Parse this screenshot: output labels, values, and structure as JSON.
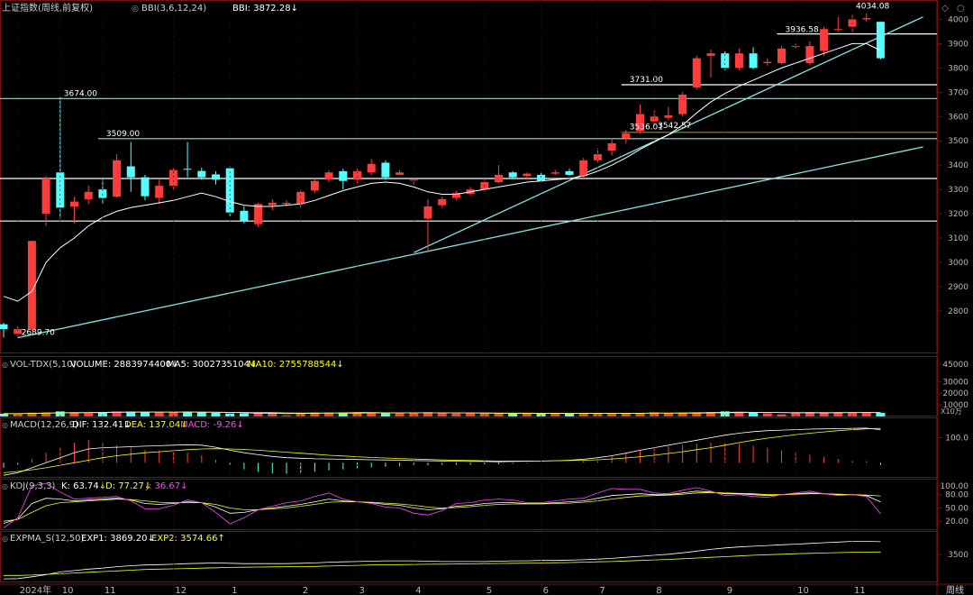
{
  "main_header": {
    "index": "上证指数(周线,前复权)",
    "bbi_params": "BBI(3,6,12,24)",
    "bbi_value": "BBI: 3872.28↓"
  },
  "vol_header": {
    "name": "VOL-TDX(5,10)",
    "volume": "VOLUME: 2883974400↓",
    "ma5": "MA5: 3002735104↓",
    "ma10": "MA10: 2755788544↓"
  },
  "macd_header": {
    "name": "MACD(12,26,9)",
    "dif": "DIF: 132.41↓",
    "dea": "DEA: 137.04↓",
    "macd": "MACD: -9.26↓"
  },
  "kdj_header": {
    "name": "KDJ(9,3,3)",
    "k": "K: 63.74↓",
    "d": "D: 77.27↓",
    "j": "J: 36.67↓"
  },
  "expma_header": {
    "name": "EXPMA_S(12,50)",
    "exp1": "EXP1: 3869.20↓",
    "exp2": "EXP2: 3574.66↑"
  },
  "vol_unit": "X10万",
  "period_label": "周线",
  "colors": {
    "up": "#ff3b3b",
    "down": "#54ffff",
    "bbi": "#ffffff",
    "trend": "#7fe8e8",
    "grid": "#7a1010",
    "axis": "#b8b8b8",
    "dea": "#ffff00",
    "macd_text": "#ff44ff"
  },
  "chart_data": {
    "type": "candlestick",
    "price_axis": {
      "ylim": [
        2640,
        4050
      ],
      "ticks": [
        2800,
        2900,
        3000,
        3100,
        3200,
        3300,
        3400,
        3500,
        3600,
        3700,
        3800,
        3900,
        4000
      ]
    },
    "x_labels": [
      {
        "i": 1,
        "label": "2024年"
      },
      {
        "i": 4,
        "label": "10"
      },
      {
        "i": 7,
        "label": "11"
      },
      {
        "i": 12,
        "label": "12"
      },
      {
        "i": 16,
        "label": "1"
      },
      {
        "i": 21,
        "label": "2"
      },
      {
        "i": 25,
        "label": "3"
      },
      {
        "i": 29,
        "label": "4"
      },
      {
        "i": 34,
        "label": "5"
      },
      {
        "i": 38,
        "label": "6"
      },
      {
        "i": 42,
        "label": "7"
      },
      {
        "i": 46,
        "label": "8"
      },
      {
        "i": 51,
        "label": "9"
      },
      {
        "i": 56,
        "label": "10"
      },
      {
        "i": 60,
        "label": "11"
      }
    ],
    "candles": [
      [
        2745,
        2725,
        2752,
        2690
      ],
      [
        2705,
        2725,
        2738,
        2692
      ],
      [
        2725,
        3088,
        3090,
        2720
      ],
      [
        3200,
        3345,
        3355,
        3150
      ],
      [
        3370,
        3225,
        3680,
        3180
      ],
      [
        3230,
        3250,
        3270,
        3160
      ],
      [
        3260,
        3290,
        3315,
        3240
      ],
      [
        3300,
        3265,
        3340,
        3240
      ],
      [
        3270,
        3420,
        3445,
        3265
      ],
      [
        3395,
        3350,
        3495,
        3290
      ],
      [
        3350,
        3272,
        3360,
        3255
      ],
      [
        3265,
        3315,
        3340,
        3240
      ],
      [
        3315,
        3380,
        3390,
        3300
      ],
      [
        3385,
        3382,
        3495,
        3350
      ],
      [
        3376,
        3350,
        3390,
        3340
      ],
      [
        3362,
        3340,
        3375,
        3320
      ],
      [
        3387,
        3205,
        3395,
        3190
      ],
      [
        3212,
        3170,
        3230,
        3160
      ],
      [
        3157,
        3240,
        3245,
        3145
      ],
      [
        3235,
        3245,
        3260,
        3215
      ],
      [
        3240,
        3245,
        3255,
        3230
      ],
      [
        3240,
        3290,
        3300,
        3225
      ],
      [
        3295,
        3335,
        3345,
        3285
      ],
      [
        3340,
        3370,
        3380,
        3330
      ],
      [
        3375,
        3335,
        3385,
        3300
      ],
      [
        3340,
        3375,
        3385,
        3325
      ],
      [
        3370,
        3405,
        3425,
        3360
      ],
      [
        3410,
        3350,
        3420,
        3340
      ],
      [
        3360,
        3370,
        3380,
        3360
      ],
      [
        3340,
        3340,
        3345,
        3320
      ],
      [
        3180,
        3230,
        3260,
        3040
      ],
      [
        3235,
        3260,
        3270,
        3225
      ],
      [
        3265,
        3285,
        3295,
        3255
      ],
      [
        3282,
        3300,
        3310,
        3275
      ],
      [
        3300,
        3330,
        3345,
        3290
      ],
      [
        3330,
        3360,
        3400,
        3325
      ],
      [
        3370,
        3350,
        3375,
        3345
      ],
      [
        3355,
        3365,
        3370,
        3345
      ],
      [
        3360,
        3335,
        3370,
        3330
      ],
      [
        3365,
        3370,
        3380,
        3360
      ],
      [
        3375,
        3360,
        3385,
        3355
      ],
      [
        3355,
        3420,
        3430,
        3350
      ],
      [
        3420,
        3445,
        3470,
        3410
      ],
      [
        3460,
        3490,
        3510,
        3440
      ],
      [
        3510,
        3530,
        3545,
        3490
      ],
      [
        3540,
        3610,
        3650,
        3530
      ],
      [
        3580,
        3600,
        3625,
        3560
      ],
      [
        3595,
        3605,
        3640,
        3585
      ],
      [
        3610,
        3690,
        3700,
        3600
      ],
      [
        3720,
        3840,
        3850,
        3710
      ],
      [
        3850,
        3860,
        3875,
        3760
      ],
      [
        3860,
        3800,
        3870,
        3790
      ],
      [
        3800,
        3860,
        3880,
        3790
      ],
      [
        3860,
        3800,
        3885,
        3795
      ],
      [
        3820,
        3825,
        3840,
        3810
      ],
      [
        3820,
        3880,
        3890,
        3815
      ],
      [
        3890,
        3890,
        3900,
        3880
      ],
      [
        3820,
        3890,
        3910,
        3810
      ],
      [
        3870,
        3960,
        3970,
        3850
      ],
      [
        3960,
        3960,
        4010,
        3950
      ],
      [
        3970,
        4000,
        4020,
        3945
      ],
      [
        4000,
        4005,
        4025,
        3990
      ],
      [
        3990,
        3840,
        3990,
        3835
      ]
    ],
    "bbi": [
      2860,
      2840,
      2880,
      3000,
      3060,
      3100,
      3150,
      3185,
      3210,
      3225,
      3235,
      3245,
      3255,
      3270,
      3285,
      3270,
      3250,
      3235,
      3230,
      3230,
      3235,
      3240,
      3255,
      3275,
      3295,
      3310,
      3325,
      3330,
      3325,
      3310,
      3290,
      3280,
      3280,
      3290,
      3300,
      3310,
      3320,
      3330,
      3335,
      3340,
      3345,
      3355,
      3375,
      3400,
      3430,
      3465,
      3495,
      3525,
      3565,
      3615,
      3660,
      3695,
      3725,
      3750,
      3775,
      3800,
      3820,
      3840,
      3860,
      3880,
      3900,
      3900,
      3872
    ],
    "price_annotations": [
      {
        "i": 4,
        "value": 3674.0,
        "label": "3674.00"
      },
      {
        "i": 7,
        "value": 3509.0,
        "label": "3509.00"
      },
      {
        "i": 1,
        "value": 2689.7,
        "label": "2689.70"
      },
      {
        "i": 44,
        "value": 3536.01,
        "label": "3536.01"
      },
      {
        "i": 46,
        "value": 3542.57,
        "label": "3542.57"
      },
      {
        "i": 44,
        "value": 3731.0,
        "label": "3731.00"
      },
      {
        "i": 55,
        "value": 3936.58,
        "label": "3936.58"
      },
      {
        "i": 60,
        "value": 4034.08,
        "label": "4034.08"
      }
    ],
    "horizontal_lines": [
      {
        "value": 3674,
        "style": "cyan",
        "from_i": 0
      },
      {
        "value": 3509,
        "style": "cyan",
        "from_i": 7
      },
      {
        "value": 3345,
        "style": "white",
        "from_i": 0
      },
      {
        "value": 3170,
        "style": "white",
        "from_i": 0
      },
      {
        "value": 3731,
        "style": "white",
        "from_i": 44
      },
      {
        "value": 3940,
        "style": "white",
        "from_i": 55
      },
      {
        "value": 3535,
        "style": "olive",
        "from_i": 44
      }
    ],
    "trend_lines": [
      {
        "from": [
          1,
          2689.7
        ],
        "to": [
          65,
          3475
        ]
      },
      {
        "from": [
          29,
          3040
        ],
        "to": [
          65,
          4010
        ]
      }
    ],
    "volume_axis": {
      "ylim": [
        0,
        48000
      ],
      "ticks": [
        10000,
        20000,
        30000,
        45000
      ]
    },
    "volume": [
      2500,
      2200,
      3300,
      3500,
      4400,
      3200,
      3500,
      3800,
      4300,
      4200,
      3700,
      3500,
      3800,
      4200,
      3500,
      3200,
      2600,
      2700,
      2800,
      2900,
      1000,
      2900,
      3500,
      3400,
      3400,
      3500,
      3100,
      2800,
      3400,
      3000,
      3800,
      2800,
      2600,
      2900,
      2500,
      2600,
      2700,
      2700,
      2500,
      2400,
      2700,
      2600,
      2800,
      2700,
      2800,
      3000,
      3600,
      2700,
      3000,
      3600,
      3800,
      4400,
      3800,
      3400,
      2800,
      1900,
      3000,
      3800,
      3300,
      3800,
      3500,
      3400,
      3100
    ],
    "vol_ma5": [
      2500,
      2400,
      2700,
      3000,
      3200,
      3300,
      3400,
      3600,
      3800,
      3900,
      3900,
      3800,
      3800,
      3900,
      3700,
      3600,
      3500,
      3200,
      2900,
      2700,
      2500,
      2600,
      2700,
      2900,
      3100,
      3300,
      3300,
      3200,
      3200,
      3200,
      3200,
      3100,
      3100,
      3000,
      2900,
      2700,
      2700,
      2700,
      2600,
      2600,
      2600,
      2600,
      2600,
      2700,
      2700,
      2800,
      3000,
      3000,
      3100,
      3200,
      3300,
      3600,
      3700,
      3600,
      3500,
      3300,
      3100,
      3100,
      3100,
      3200,
      3400,
      3500,
      3400
    ],
    "vol_ma10": [
      2500,
      2450,
      2600,
      2800,
      3000,
      3100,
      3200,
      3300,
      3500,
      3600,
      3700,
      3700,
      3700,
      3700,
      3700,
      3700,
      3600,
      3500,
      3400,
      3300,
      3100,
      3000,
      3000,
      3000,
      2900,
      2900,
      3000,
      3000,
      3100,
      3100,
      3200,
      3200,
      3200,
      3100,
      3100,
      3000,
      2900,
      2900,
      2800,
      2800,
      2700,
      2700,
      2700,
      2700,
      2700,
      2700,
      2800,
      2800,
      2800,
      2900,
      3000,
      3100,
      3300,
      3400,
      3400,
      3400,
      3400,
      3400,
      3300,
      3300,
      3300,
      3300,
      3300
    ],
    "macd_axis": {
      "ylim": [
        -60,
        170
      ],
      "ticks": [
        100.0
      ]
    },
    "dif": [
      -50,
      -40,
      -20,
      0,
      20,
      40,
      55,
      60,
      62,
      64,
      66,
      68,
      70,
      72,
      70,
      62,
      50,
      40,
      32,
      25,
      20,
      18,
      16,
      15,
      14,
      13,
      12,
      11,
      10,
      9,
      8,
      7,
      6,
      5,
      5,
      4,
      5,
      6,
      7,
      8,
      10,
      14,
      20,
      28,
      38,
      50,
      60,
      70,
      80,
      90,
      100,
      110,
      118,
      124,
      128,
      130,
      132,
      134,
      135,
      136,
      137,
      138,
      132
    ],
    "dea": [
      -40,
      -35,
      -28,
      -20,
      -10,
      0,
      10,
      20,
      28,
      34,
      40,
      44,
      48,
      52,
      55,
      56,
      55,
      53,
      50,
      46,
      42,
      38,
      34,
      30,
      27,
      24,
      21,
      19,
      17,
      15,
      13,
      11,
      10,
      9,
      8,
      7,
      7,
      7,
      7,
      8,
      9,
      10,
      12,
      15,
      19,
      24,
      30,
      37,
      44,
      52,
      60,
      70,
      80,
      90,
      98,
      105,
      112,
      118,
      123,
      128,
      132,
      135,
      137
    ],
    "macd_hist": [
      -20,
      -10,
      15,
      40,
      60,
      80,
      90,
      80,
      70,
      60,
      52,
      48,
      44,
      40,
      30,
      12,
      -10,
      -26,
      -36,
      -42,
      -44,
      -40,
      -36,
      -30,
      -26,
      -22,
      -18,
      -16,
      -14,
      -12,
      -10,
      -8,
      -8,
      -8,
      -6,
      -6,
      -4,
      -2,
      0,
      0,
      2,
      8,
      16,
      26,
      38,
      52,
      60,
      66,
      72,
      76,
      80,
      80,
      76,
      68,
      60,
      50,
      40,
      32,
      24,
      16,
      10,
      6,
      -9.26
    ],
    "kdj_axis": {
      "ylim": [
        0,
        110
      ],
      "ticks": [
        100.0,
        80.0,
        50.0,
        20.0
      ]
    },
    "k": [
      15,
      25,
      60,
      72,
      70,
      66,
      68,
      70,
      72,
      68,
      60,
      58,
      60,
      64,
      62,
      52,
      38,
      40,
      46,
      50,
      54,
      58,
      64,
      70,
      66,
      64,
      62,
      58,
      56,
      50,
      46,
      48,
      54,
      56,
      60,
      62,
      62,
      60,
      60,
      62,
      64,
      66,
      72,
      78,
      80,
      82,
      80,
      80,
      84,
      88,
      86,
      82,
      82,
      80,
      78,
      80,
      82,
      84,
      82,
      80,
      80,
      78,
      63.74
    ],
    "d": [
      20,
      24,
      40,
      55,
      62,
      64,
      66,
      68,
      70,
      69,
      66,
      63,
      62,
      62,
      62,
      58,
      50,
      46,
      46,
      48,
      50,
      54,
      58,
      63,
      64,
      64,
      63,
      61,
      59,
      56,
      52,
      50,
      51,
      53,
      56,
      58,
      59,
      59,
      59,
      60,
      61,
      63,
      66,
      70,
      74,
      77,
      78,
      79,
      81,
      84,
      85,
      84,
      83,
      82,
      80,
      80,
      81,
      82,
      82,
      81,
      80,
      79,
      77.27
    ],
    "j": [
      5,
      28,
      100,
      106,
      86,
      70,
      72,
      74,
      76,
      66,
      48,
      48,
      56,
      68,
      62,
      40,
      14,
      28,
      46,
      54,
      62,
      66,
      76,
      84,
      70,
      64,
      60,
      52,
      50,
      38,
      34,
      44,
      60,
      62,
      68,
      70,
      68,
      62,
      62,
      66,
      70,
      72,
      84,
      94,
      92,
      92,
      84,
      82,
      90,
      96,
      88,
      78,
      80,
      76,
      74,
      80,
      84,
      88,
      82,
      78,
      80,
      76,
      36.67
    ],
    "expma_axis": {
      "ylim": [
        2700,
        4100
      ],
      "ticks": [
        3500
      ]
    },
    "exp1": [
      2800,
      2810,
      2860,
      2920,
      3000,
      3040,
      3080,
      3110,
      3150,
      3180,
      3200,
      3210,
      3220,
      3240,
      3250,
      3260,
      3250,
      3240,
      3240,
      3240,
      3240,
      3250,
      3260,
      3280,
      3290,
      3300,
      3310,
      3320,
      3320,
      3320,
      3310,
      3300,
      3300,
      3300,
      3300,
      3310,
      3320,
      3320,
      3330,
      3330,
      3340,
      3350,
      3370,
      3390,
      3420,
      3450,
      3480,
      3510,
      3550,
      3600,
      3650,
      3690,
      3720,
      3740,
      3760,
      3780,
      3800,
      3820,
      3840,
      3860,
      3880,
      3880,
      3869.2
    ],
    "exp2": [
      2900,
      2900,
      2910,
      2930,
      2950,
      2970,
      2990,
      3010,
      3030,
      3050,
      3070,
      3080,
      3090,
      3100,
      3110,
      3120,
      3130,
      3135,
      3140,
      3145,
      3150,
      3155,
      3160,
      3170,
      3180,
      3190,
      3200,
      3205,
      3210,
      3215,
      3220,
      3225,
      3230,
      3235,
      3240,
      3245,
      3250,
      3255,
      3260,
      3265,
      3270,
      3280,
      3290,
      3300,
      3315,
      3330,
      3345,
      3360,
      3380,
      3400,
      3420,
      3440,
      3460,
      3480,
      3495,
      3510,
      3525,
      3535,
      3545,
      3555,
      3565,
      3570,
      3574.66
    ]
  }
}
